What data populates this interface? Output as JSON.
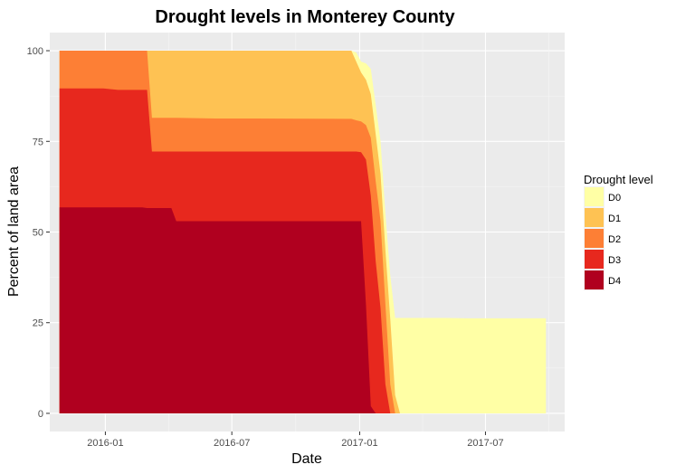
{
  "chart_data": {
    "type": "area",
    "title": "Drought levels in Monterey County",
    "xlabel": "Date",
    "ylabel": "Percent of land area",
    "x_tick_labels": [
      "2016-01",
      "2016-07",
      "2017-01",
      "2017-07"
    ],
    "x_ticks": [
      "2016-01-01",
      "2016-07-01",
      "2017-01-01",
      "2017-07-01"
    ],
    "y_ticks": [
      0,
      25,
      50,
      75,
      100
    ],
    "xlim": [
      "2015-10-13",
      "2017-10-23"
    ],
    "ylim": [
      -5,
      105
    ],
    "grid": true,
    "legend": {
      "title": "Drought level",
      "position": "right",
      "entries": [
        "D0",
        "D1",
        "D2",
        "D3",
        "D4"
      ]
    },
    "colors": {
      "D0": "#FFFFA5",
      "D1": "#FEC253",
      "D2": "#FD7F35",
      "D3": "#E7281E",
      "D4": "#B0001F"
    },
    "dates": [
      "2015-10-27",
      "2015-11-24",
      "2015-12-29",
      "2016-01-19",
      "2016-02-23",
      "2016-03-01",
      "2016-03-08",
      "2016-04-05",
      "2016-04-12",
      "2016-06-07",
      "2016-08-02",
      "2016-12-20",
      "2016-12-27",
      "2017-01-03",
      "2017-01-10",
      "2017-01-17",
      "2017-01-24",
      "2017-01-31",
      "2017-02-07",
      "2017-02-14",
      "2017-02-21",
      "2017-02-28",
      "2017-03-07",
      "2017-04-18",
      "2017-05-02",
      "2017-06-06",
      "2017-07-04",
      "2017-09-26"
    ],
    "series": [
      {
        "name": "D0",
        "values": [
          100,
          100,
          100,
          100,
          100,
          100,
          100,
          100,
          100,
          100,
          100,
          100,
          99.5,
          97,
          96.5,
          95,
          85,
          75,
          55,
          38,
          26.3,
          26.3,
          26.3,
          26.3,
          26.3,
          26.2,
          26.2,
          26.2
        ]
      },
      {
        "name": "D1",
        "values": [
          100,
          100,
          100,
          100,
          100,
          100,
          100,
          100,
          100,
          100,
          100,
          100,
          97,
          94,
          92,
          88,
          77,
          66,
          45,
          26,
          5,
          0,
          0,
          0,
          0,
          0,
          0,
          0
        ]
      },
      {
        "name": "D2",
        "values": [
          100,
          100,
          100,
          100,
          100,
          100,
          81.5,
          81.5,
          81.5,
          81.3,
          81.3,
          81.2,
          80.8,
          80.5,
          79.5,
          76,
          64,
          53,
          30,
          8,
          0,
          0,
          0,
          0,
          0,
          0,
          0,
          0
        ]
      },
      {
        "name": "D3",
        "values": [
          89.6,
          89.6,
          89.6,
          89.2,
          89.2,
          89.2,
          72.2,
          72.2,
          72.2,
          72.2,
          72.2,
          72.2,
          72.2,
          72,
          70,
          60,
          42,
          29,
          8,
          0,
          0,
          0,
          0,
          0,
          0,
          0,
          0,
          0
        ]
      },
      {
        "name": "D4",
        "values": [
          56.8,
          56.8,
          56.8,
          56.8,
          56.8,
          56.6,
          56.6,
          56.6,
          53,
          53,
          53,
          53,
          53,
          53,
          30,
          2,
          0,
          0,
          0,
          0,
          0,
          0,
          0,
          0,
          0,
          0,
          0,
          0
        ]
      }
    ]
  }
}
